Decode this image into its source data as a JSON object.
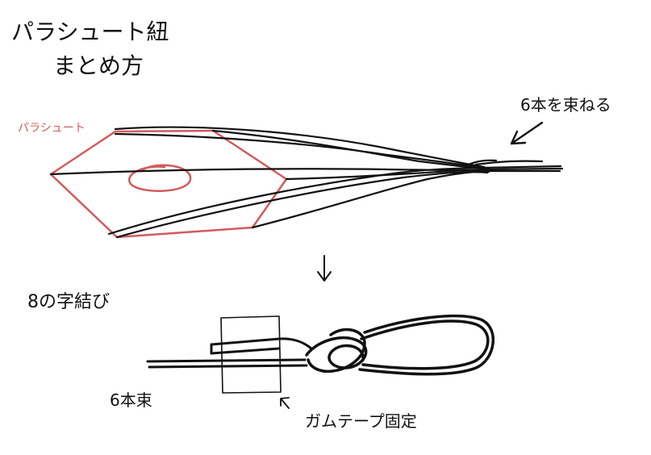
{
  "title": {
    "line1": "パラシュート紐",
    "line2": "まとめ方"
  },
  "top_diagram": {
    "parachute_label": "パラシュート",
    "bundle_note": "6本を束ねる"
  },
  "bottom_diagram": {
    "knot_label": "8の字結び",
    "bundle_label": "6本束",
    "tape_label": "ガムテープ固定"
  },
  "colors": {
    "ink": "#111111",
    "parachute": "#d45a5a"
  }
}
